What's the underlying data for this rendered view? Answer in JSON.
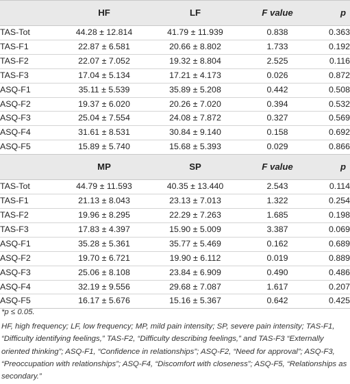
{
  "table": {
    "group1": {
      "header": [
        "",
        "HF",
        "LF",
        "F value",
        "p"
      ],
      "rows": [
        [
          "TAS-Tot",
          "44.28 ± 12.814",
          "41.79 ± 11.939",
          "0.838",
          "0.363"
        ],
        [
          "TAS-F1",
          "22.87 ± 6.581",
          "20.66 ± 8.802",
          "1.733",
          "0.192"
        ],
        [
          "TAS-F2",
          "22.07 ± 7.052",
          "19.32 ± 8.804",
          "2.525",
          "0.116"
        ],
        [
          "TAS-F3",
          "17.04 ± 5.134",
          "17.21 ± 4.173",
          "0.026",
          "0.872"
        ],
        [
          "ASQ-F1",
          "35.11 ± 5.539",
          "35.89 ± 5.208",
          "0.442",
          "0.508"
        ],
        [
          "ASQ-F2",
          "19.37 ± 6.020",
          "20.26 ± 7.020",
          "0.394",
          "0.532"
        ],
        [
          "ASQ-F3",
          "25.04 ± 7.554",
          "24.08 ± 7.872",
          "0.327",
          "0.569"
        ],
        [
          "ASQ-F4",
          "31.61 ± 8.531",
          "30.84 ± 9.140",
          "0.158",
          "0.692"
        ],
        [
          "ASQ-F5",
          "15.89 ± 5.740",
          "15.68 ± 5.393",
          "0.029",
          "0.866"
        ]
      ]
    },
    "group2": {
      "header": [
        "",
        "MP",
        "SP",
        "F value",
        "p"
      ],
      "rows": [
        [
          "TAS-Tot",
          "44.79 ± 11.593",
          "40.35 ± 13.440",
          "2.543",
          "0.114"
        ],
        [
          "TAS-F1",
          "21.13 ± 8.043",
          "23.13 ± 7.013",
          "1.322",
          "0.254"
        ],
        [
          "TAS-F2",
          "19.96 ± 8.295",
          "22.29 ± 7.263",
          "1.685",
          "0.198"
        ],
        [
          "TAS-F3",
          "17.83 ± 4.397",
          "15.90 ± 5.009",
          "3.387",
          "0.069"
        ],
        [
          "ASQ-F1",
          "35.28 ± 5.361",
          "35.77 ± 5.469",
          "0.162",
          "0.689"
        ],
        [
          "ASQ-F2",
          "19.70 ± 6.721",
          "19.90 ± 6.112",
          "0.019",
          "0.889"
        ],
        [
          "ASQ-F3",
          "25.06 ± 8.108",
          "23.84 ± 6.909",
          "0.490",
          "0.486"
        ],
        [
          "ASQ-F4",
          "32.19 ± 9.556",
          "29.68 ± 7.087",
          "1.617",
          "0.207"
        ],
        [
          "ASQ-F5",
          "16.17 ± 5.676",
          "15.16 ± 5.367",
          "0.642",
          "0.425"
        ]
      ]
    }
  },
  "footnotes": {
    "significance": "*p ≤ 0.05.",
    "abbreviations": "HF, high frequency; LF, low frequency; MP, mild pain intensity; SP, severe pain intensity; TAS-F1, “Difficulty identifying feelings,” TAS-F2, “Difficulty describing feelings,” and TAS-F3 “Externally oriented thinking”; ASQ-F1, “Confidence in relationships”; ASQ-F2, “Need for approval”; ASQ-F3, “Preoccupation with relationships”; ASQ-F4, “Discomfort with closeness”; ASQ-F5, “Relationships as secondary.”"
  }
}
